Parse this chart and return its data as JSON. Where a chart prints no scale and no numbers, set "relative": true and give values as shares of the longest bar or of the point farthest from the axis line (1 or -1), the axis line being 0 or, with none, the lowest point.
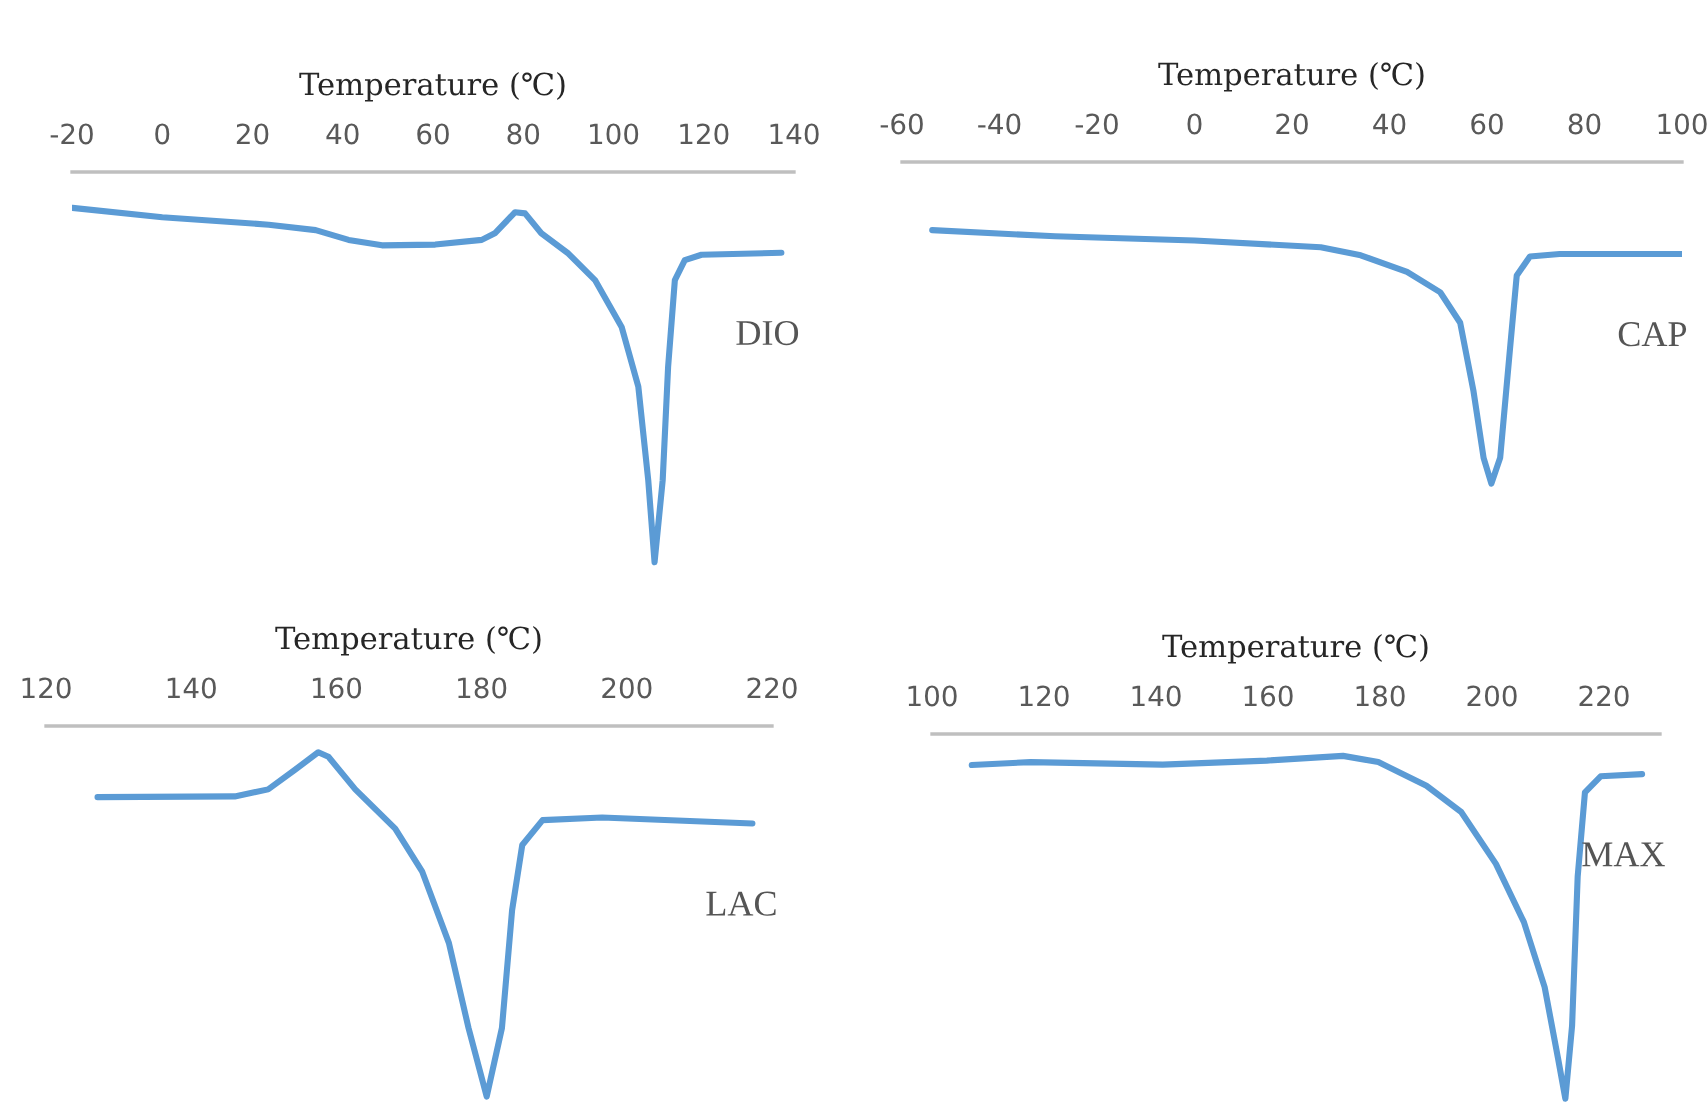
{
  "chart_data": [
    {
      "type": "line",
      "relative": true,
      "xlabel": "Temperature (℃)",
      "xlim": [
        -20,
        140
      ],
      "xticks": [
        -20,
        0,
        20,
        40,
        60,
        80,
        100,
        120,
        140
      ],
      "tick_labels": "x",
      "grid": false,
      "legend": false,
      "x": [
        -19.9,
        0,
        23.6,
        34,
        41.3,
        48.7,
        60.5,
        70.8,
        73.7,
        78.2,
        80.4,
        84,
        90,
        95.9,
        101.8,
        105.5,
        107.7,
        109.1,
        110.9,
        112.1,
        113.6,
        115.8,
        119.5,
        137.2
      ],
      "series": [
        {
          "name": "DIO",
          "color": "#5b9bd5",
          "values": [
            -0.092,
            -0.116,
            -0.135,
            -0.149,
            -0.174,
            -0.188,
            -0.186,
            -0.174,
            -0.157,
            -0.103,
            -0.106,
            -0.157,
            -0.209,
            -0.277,
            -0.397,
            -0.55,
            -0.79,
            -1,
            -0.79,
            -0.5,
            -0.277,
            -0.226,
            -0.212,
            -0.207
          ]
        }
      ]
    },
    {
      "type": "line",
      "relative": true,
      "xlabel": "Temperature (℃)",
      "xlim": [
        -60,
        100
      ],
      "xticks": [
        -60,
        -40,
        -20,
        0,
        20,
        40,
        60,
        80,
        100
      ],
      "tick_labels": "x",
      "grid": false,
      "legend": false,
      "x": [
        -53.8,
        -28.6,
        0,
        25.9,
        34.1,
        43.6,
        50.4,
        54.5,
        57.2,
        59.3,
        60.9,
        62.7,
        64.7,
        66.1,
        68.8,
        74.9,
        100
      ],
      "series": [
        {
          "name": "CAP",
          "color": "#5b9bd5",
          "values": [
            -0.212,
            -0.231,
            -0.244,
            -0.265,
            -0.29,
            -0.342,
            -0.405,
            -0.5,
            -0.71,
            -0.92,
            -1,
            -0.92,
            -0.584,
            -0.353,
            -0.294,
            -0.286,
            -0.286
          ]
        }
      ]
    },
    {
      "type": "line",
      "relative": true,
      "xlabel": "Temperature (℃)",
      "xlim": [
        120,
        220
      ],
      "xticks": [
        120,
        140,
        160,
        180,
        200,
        220
      ],
      "tick_labels": "x",
      "grid": false,
      "legend": false,
      "x": [
        127.1,
        146,
        150.6,
        154.3,
        157.5,
        158.9,
        162.6,
        168.1,
        171.8,
        175.5,
        178.2,
        180.7,
        182.8,
        184.2,
        185.6,
        188.4,
        196.6,
        217.3
      ],
      "series": [
        {
          "name": "LAC",
          "color": "#5b9bd5",
          "values": [
            -0.192,
            -0.19,
            -0.171,
            -0.118,
            -0.071,
            -0.083,
            -0.171,
            -0.277,
            -0.392,
            -0.586,
            -0.815,
            -1,
            -0.815,
            -0.497,
            -0.321,
            -0.254,
            -0.247,
            -0.263
          ]
        }
      ]
    },
    {
      "type": "line",
      "relative": true,
      "xlabel": "Temperature (℃)",
      "xlim": [
        100,
        230
      ],
      "xticks": [
        100,
        120,
        140,
        160,
        180,
        200,
        220
      ],
      "tick_labels": "x",
      "grid": false,
      "legend": false,
      "x": [
        107.1,
        117.6,
        141.2,
        159.8,
        173.4,
        179.7,
        188.3,
        194.5,
        200.7,
        205.7,
        209.4,
        211.8,
        213.1,
        214.3,
        215.3,
        216.6,
        219.4,
        226.8
      ],
      "series": [
        {
          "name": "MAX",
          "color": "#5b9bd5",
          "values": [
            -0.085,
            -0.077,
            -0.084,
            -0.073,
            -0.06,
            -0.077,
            -0.142,
            -0.214,
            -0.356,
            -0.516,
            -0.694,
            -0.89,
            -1,
            -0.8,
            -0.391,
            -0.16,
            -0.116,
            -0.11
          ]
        }
      ]
    }
  ]
}
